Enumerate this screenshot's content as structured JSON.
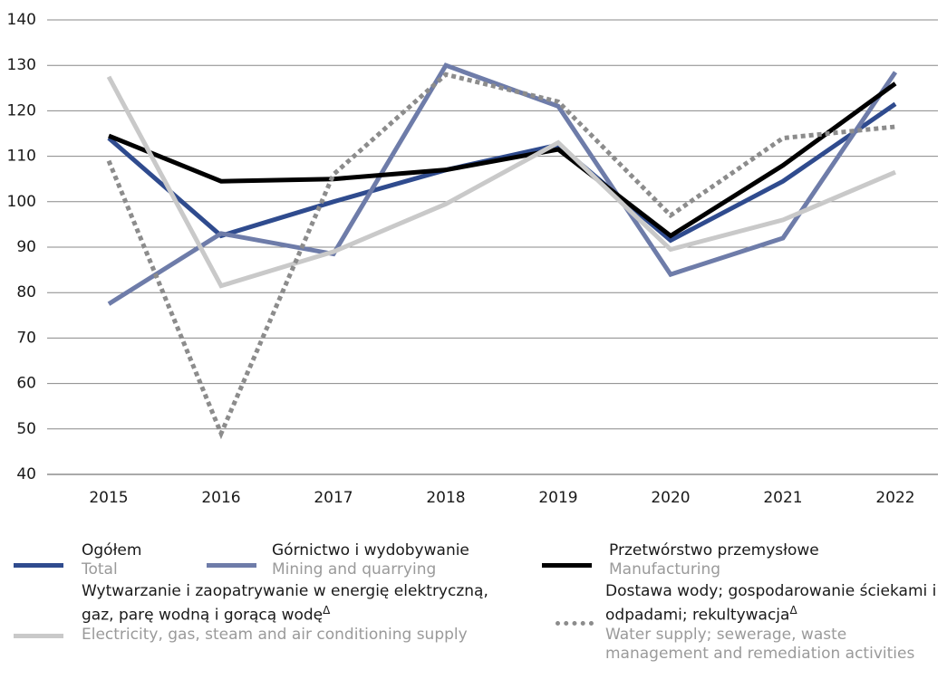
{
  "chart_data": {
    "type": "line",
    "categories": [
      "2015",
      "2016",
      "2017",
      "2018",
      "2019",
      "2020",
      "2021",
      "2022"
    ],
    "ylim": [
      40,
      140
    ],
    "yticks": [
      40,
      50,
      60,
      70,
      80,
      90,
      100,
      110,
      120,
      130,
      140
    ],
    "grid": true,
    "series": [
      {
        "name": "Ogółem",
        "name_en": "Total",
        "color": "#2f4b8e",
        "dashed": false,
        "values": [
          114,
          92.5,
          100,
          107,
          112.5,
          91.5,
          104.5,
          121.5
        ]
      },
      {
        "name": "Górnictwo i wydobywanie",
        "name_en": "Mining and quarrying",
        "color": "#6e7ca9",
        "dashed": false,
        "values": [
          77.5,
          93,
          88.5,
          130,
          121,
          84,
          92,
          128.5
        ]
      },
      {
        "name": "Przetwórstwo przemysłowe",
        "name_en": "Manufacturing",
        "color": "#000000",
        "dashed": false,
        "values": [
          114.5,
          104.5,
          105,
          107,
          111.5,
          92.5,
          108,
          126
        ]
      },
      {
        "name": "Wytwarzanie i zaopatrywanie w energię elektryczną, gaz, parę wodną i gorącą wodę",
        "name_mark": "Δ",
        "name_en": "Electricity, gas, steam and air conditioning supply",
        "color": "#c9c9c9",
        "dashed": false,
        "values": [
          127.5,
          81.5,
          89,
          99.5,
          113,
          89.5,
          96,
          106.5
        ]
      },
      {
        "name": "Dostawa wody; gospodarowanie ściekami i odpadami; rekultywacja",
        "name_mark": "Δ",
        "name_en": "Water supply; sewerage, waste management and remediation activities",
        "color": "#8c8c8c",
        "dashed": true,
        "values": [
          109,
          49,
          106,
          128,
          122,
          97,
          114,
          116.5
        ]
      }
    ]
  }
}
